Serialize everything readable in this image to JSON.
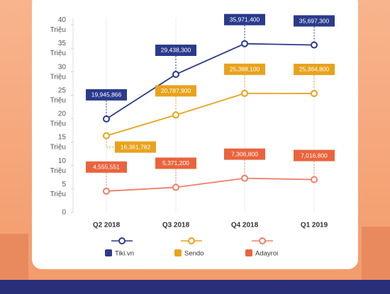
{
  "chart_data": {
    "type": "line",
    "categories": [
      "Q2 2018",
      "Q3 2018",
      "Q4 2018",
      "Q1 2019"
    ],
    "series": [
      {
        "name": "Tiki.vn",
        "color": "#2b3a8c",
        "values": [
          19945866,
          29438300,
          35971400,
          35697300
        ],
        "value_labels": [
          "19,945,866",
          "29,438,300",
          "35,971,400",
          "35,697,300"
        ]
      },
      {
        "name": "Sendo",
        "color": "#e8a31c",
        "values": [
          16361782,
          20787900,
          25388100,
          25364800
        ],
        "value_labels": [
          "16,361,782",
          "20,787,900",
          "25,388,100",
          "25,364,800"
        ]
      },
      {
        "name": "Adayroi",
        "color": "#ef7f68",
        "values": [
          4555551,
          5371200,
          7306800,
          7016800
        ],
        "value_labels": [
          "4,555,551",
          "5,371,200",
          "7,306,800",
          "7,016,800"
        ]
      }
    ],
    "ylim": [
      0,
      40000000
    ],
    "yticks": [
      0,
      {
        "value": 5000000,
        "label": "5 Triệu"
      },
      {
        "value": 10000000,
        "label": "10 Triệu"
      },
      {
        "value": 15000000,
        "label": "15 Triệu"
      },
      {
        "value": 20000000,
        "label": "20 Triệu"
      },
      {
        "value": 25000000,
        "label": "25 Triệu"
      },
      {
        "value": 30000000,
        "label": "30 Triệu"
      },
      {
        "value": 35000000,
        "label": "35 Triệu"
      },
      {
        "value": 40000000,
        "label": "40 Triệu"
      }
    ]
  }
}
